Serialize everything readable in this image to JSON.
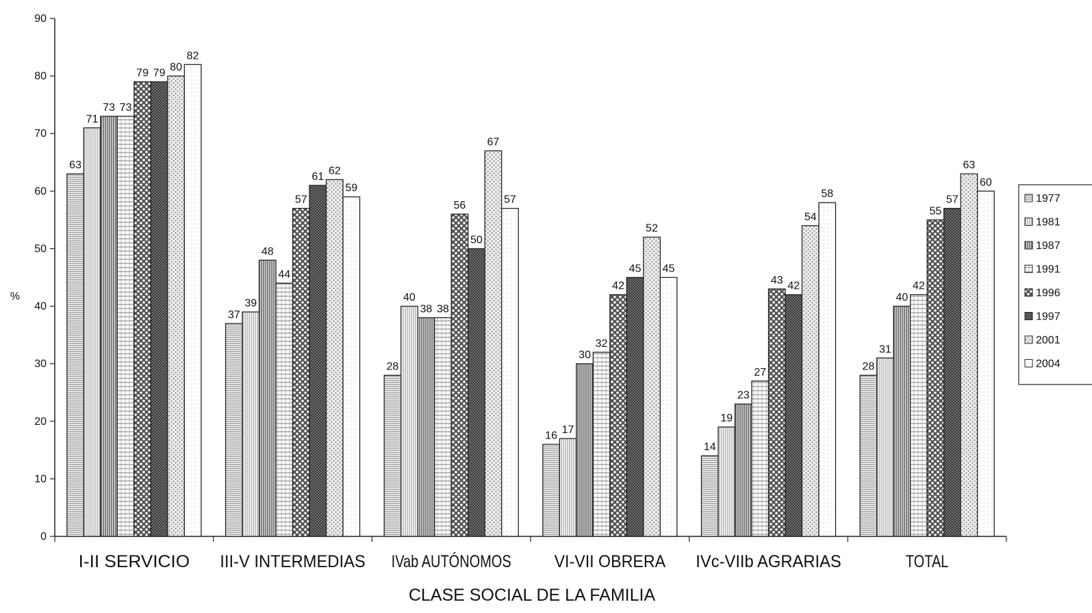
{
  "chart_data": {
    "type": "bar",
    "xlabel": "CLASE SOCIAL DE LA FAMILIA",
    "ylabel": "%",
    "ylim": [
      0,
      90
    ],
    "yticks": [
      0,
      10,
      20,
      30,
      40,
      50,
      60,
      70,
      80,
      90
    ],
    "grid": false,
    "legend_position": "right",
    "categories": [
      "I-II SERVICIO",
      "III-V INTERMEDIAS",
      "IVab AUTÓNOMOS",
      "VI-VII OBRERA",
      "IVc-VIIb AGRARIAS",
      "TOTAL"
    ],
    "series": [
      {
        "name": "1977",
        "values": [
          63,
          37,
          28,
          16,
          14,
          28
        ]
      },
      {
        "name": "1981",
        "values": [
          71,
          39,
          40,
          17,
          19,
          31
        ]
      },
      {
        "name": "1987",
        "values": [
          73,
          48,
          38,
          30,
          23,
          40
        ]
      },
      {
        "name": "1991",
        "values": [
          73,
          44,
          38,
          32,
          27,
          42
        ]
      },
      {
        "name": "1996",
        "values": [
          79,
          57,
          56,
          42,
          43,
          55
        ]
      },
      {
        "name": "1997",
        "values": [
          79,
          61,
          50,
          45,
          42,
          57
        ]
      },
      {
        "name": "2001",
        "values": [
          80,
          62,
          67,
          52,
          54,
          63
        ]
      },
      {
        "name": "2004",
        "values": [
          82,
          59,
          57,
          45,
          58,
          60
        ]
      }
    ]
  }
}
